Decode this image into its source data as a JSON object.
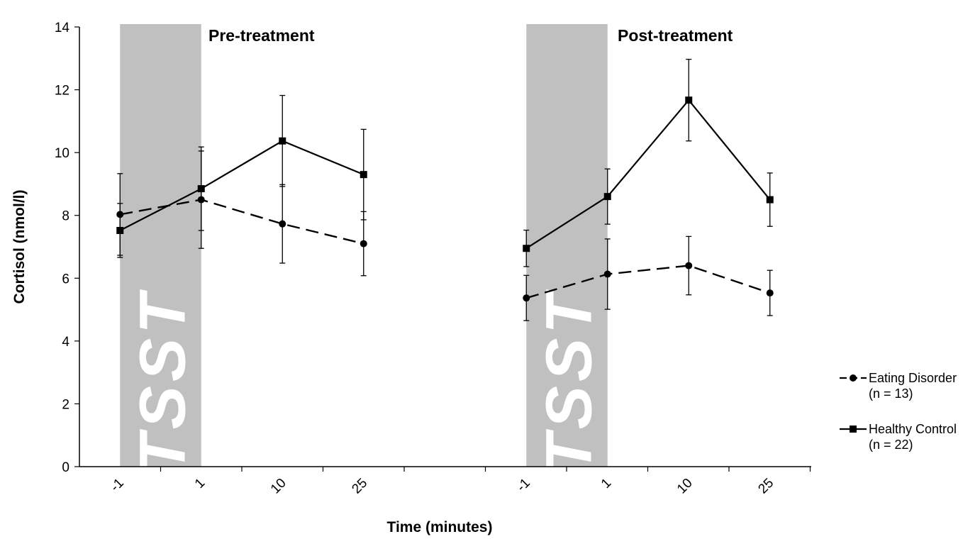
{
  "chart_data": {
    "type": "line",
    "title": "",
    "xlabel": "Time (minutes)",
    "ylabel": "Cortisol (nmol/l)",
    "ylim": [
      0,
      14
    ],
    "yticks": [
      "0",
      "2",
      "4",
      "6",
      "8",
      "10",
      "12",
      "14"
    ],
    "shaded_label": "TSST",
    "panels": [
      {
        "name": "Pre-treatment",
        "categories": [
          "-1",
          "1",
          "10",
          "25"
        ],
        "series": [
          {
            "name": "Eating Disorder",
            "n_label": "(n = 13)",
            "style": "dashed",
            "marker": "circle",
            "values": [
              8.03,
              8.5,
              7.73,
              7.1
            ],
            "error": [
              1.3,
              1.55,
              1.25,
              1.02
            ]
          },
          {
            "name": "Healthy Control",
            "n_label": "(n = 22)",
            "style": "solid",
            "marker": "square",
            "values": [
              7.52,
              8.85,
              10.37,
              9.3
            ],
            "error": [
              0.86,
              1.33,
              1.45,
              1.44
            ]
          }
        ]
      },
      {
        "name": "Post-treatment",
        "categories": [
          "-1",
          "1",
          "10",
          "25"
        ],
        "series": [
          {
            "name": "Eating Disorder",
            "n_label": "(n = 13)",
            "style": "dashed",
            "marker": "circle",
            "values": [
              5.37,
              6.13,
              6.4,
              5.53
            ],
            "error": [
              0.72,
              1.12,
              0.93,
              0.72
            ]
          },
          {
            "name": "Healthy Control",
            "n_label": "(n = 22)",
            "style": "solid",
            "marker": "square",
            "values": [
              6.95,
              8.6,
              11.67,
              8.5
            ],
            "error": [
              0.58,
              0.88,
              1.3,
              0.85
            ]
          }
        ]
      }
    ],
    "legend": [
      {
        "label": "Eating Disorder",
        "sublabel": "(n = 13)",
        "style": "dashed",
        "marker": "circle"
      },
      {
        "label": "Healthy Control",
        "sublabel": "(n = 22)",
        "style": "solid",
        "marker": "square"
      }
    ],
    "legend_position": "right",
    "colors": {
      "shade": "#c0c0c0",
      "line": "#000000"
    }
  }
}
